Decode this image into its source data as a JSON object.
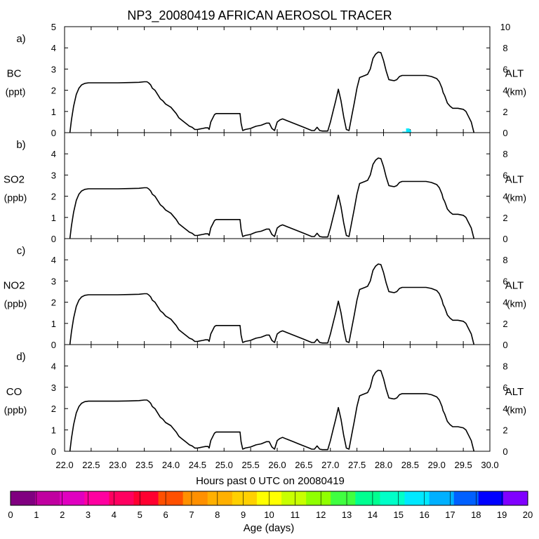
{
  "figure": {
    "title": "NP3_20080419 AFRICAN AEROSOL TRACER",
    "xlabel": "Hours past 0 UTC on 20080419",
    "x_ticks": [
      "22.0",
      "22.5",
      "23.0",
      "23.5",
      "24.0",
      "24.5",
      "25.0",
      "25.5",
      "26.0",
      "26.5",
      "27.0",
      "27.5",
      "28.0",
      "28.5",
      "29.0",
      "29.5",
      "30.0"
    ]
  },
  "panels": [
    {
      "letter": "a)",
      "species": "BC",
      "unit": "(ppt)",
      "right_label": "ALT",
      "right_unit": "(km)",
      "left_ticks": [
        "0",
        "1",
        "2",
        "3",
        "4",
        "5"
      ],
      "right_ticks": [
        "0",
        "2",
        "4",
        "6",
        "8",
        "10"
      ]
    },
    {
      "letter": "b)",
      "species": "SO2",
      "unit": "(ppb)",
      "right_label": "ALT",
      "right_unit": "(km)",
      "left_ticks": [
        "0",
        "1",
        "2",
        "3",
        "4"
      ],
      "right_ticks": [
        "0",
        "2",
        "4",
        "6",
        "8"
      ]
    },
    {
      "letter": "c)",
      "species": "NO2",
      "unit": "(ppb)",
      "right_label": "ALT",
      "right_unit": "(km)",
      "left_ticks": [
        "0",
        "1",
        "2",
        "3",
        "4"
      ],
      "right_ticks": [
        "0",
        "2",
        "4",
        "6",
        "8"
      ]
    },
    {
      "letter": "d)",
      "species": "CO",
      "unit": "(ppb)",
      "right_label": "ALT",
      "right_unit": "(km)",
      "left_ticks": [
        "0",
        "1",
        "2",
        "3",
        "4"
      ],
      "right_ticks": [
        "0",
        "2",
        "4",
        "6",
        "8"
      ]
    }
  ],
  "colorbar": {
    "label": "Age (days)",
    "tick_labels": [
      "0",
      "1",
      "2",
      "3",
      "4",
      "5",
      "6",
      "7",
      "8",
      "9",
      "10",
      "11",
      "12",
      "13",
      "14",
      "15",
      "16",
      "17",
      "18",
      "19",
      "20"
    ],
    "colors": [
      "#800080",
      "#c000a0",
      "#e000c0",
      "#ff00a0",
      "#ff0060",
      "#ff0030",
      "#ff5000",
      "#ff9000",
      "#ffb000",
      "#ffd000",
      "#ffff00",
      "#c8ff00",
      "#90ff00",
      "#40ff40",
      "#00ff90",
      "#00ffc8",
      "#00e8ff",
      "#00b0ff",
      "#0060ff",
      "#0000ff",
      "#8000ff"
    ]
  },
  "chart_data": {
    "type": "line",
    "x_range": [
      22.0,
      30.0
    ],
    "left_y_range": [
      0,
      5
    ],
    "right_y_range": [
      0,
      10
    ],
    "altitude_km": {
      "x": [
        22.1,
        22.13,
        22.17,
        22.22,
        22.27,
        22.32,
        22.38,
        22.45,
        22.6,
        22.8,
        23.0,
        23.2,
        23.4,
        23.5,
        23.55,
        23.58,
        23.62,
        23.65,
        23.7,
        23.75,
        23.8,
        23.85,
        23.9,
        24.0,
        24.05,
        24.1,
        24.15,
        24.2,
        24.25,
        24.3,
        24.35,
        24.4,
        24.45,
        24.5,
        24.55,
        24.6,
        24.65,
        24.7,
        24.72,
        24.75,
        24.8,
        24.82,
        24.85,
        24.9,
        25.0,
        25.2,
        25.3,
        25.32,
        25.35,
        25.4,
        25.5,
        25.55,
        25.6,
        25.7,
        25.8,
        25.85,
        25.9,
        25.95,
        26.0,
        26.05,
        26.1,
        26.15,
        26.2,
        26.3,
        26.4,
        26.5,
        26.6,
        26.65,
        26.7,
        26.75,
        26.8,
        26.85,
        26.9,
        26.95,
        27.0,
        27.05,
        27.1,
        27.15,
        27.2,
        27.25,
        27.3,
        27.35,
        27.4,
        27.45,
        27.5,
        27.55,
        27.6,
        27.65,
        27.7,
        27.75,
        27.8,
        27.85,
        27.9,
        27.95,
        28.0,
        28.05,
        28.1,
        28.15,
        28.2,
        28.25,
        28.3,
        28.35,
        28.4,
        28.5,
        28.6,
        28.7,
        28.8,
        28.9,
        29.0,
        29.05,
        29.1,
        29.12,
        29.15,
        29.2,
        29.25,
        29.3,
        29.35,
        29.4,
        29.5,
        29.55,
        29.6,
        29.65,
        29.7
      ],
      "y": [
        0,
        1.2,
        2.5,
        3.6,
        4.2,
        4.5,
        4.65,
        4.7,
        4.7,
        4.7,
        4.7,
        4.72,
        4.75,
        4.8,
        4.8,
        4.7,
        4.5,
        4.2,
        4.0,
        3.6,
        3.2,
        3.0,
        2.7,
        2.4,
        2.1,
        1.8,
        1.4,
        1.2,
        1.0,
        0.8,
        0.6,
        0.5,
        0.3,
        0.3,
        0.35,
        0.4,
        0.45,
        0.45,
        0.3,
        1.0,
        1.5,
        1.7,
        1.8,
        1.8,
        1.8,
        1.8,
        1.8,
        0.9,
        0.2,
        0.3,
        0.4,
        0.5,
        0.6,
        0.7,
        0.9,
        0.9,
        0.4,
        0.2,
        1.0,
        1.2,
        1.3,
        1.2,
        1.1,
        0.9,
        0.7,
        0.5,
        0.3,
        0.2,
        0.2,
        0.5,
        0.2,
        0.15,
        0.15,
        0.15,
        1.0,
        2.0,
        3.0,
        4.1,
        3.0,
        1.5,
        0.3,
        0.2,
        1.5,
        2.8,
        4.2,
        5.2,
        5.3,
        5.4,
        5.5,
        6.0,
        7.0,
        7.4,
        7.6,
        7.55,
        6.8,
        5.8,
        5.0,
        4.95,
        4.9,
        5.0,
        5.3,
        5.4,
        5.4,
        5.4,
        5.4,
        5.4,
        5.4,
        5.3,
        5.1,
        4.8,
        4.2,
        3.8,
        3.5,
        2.8,
        2.5,
        2.3,
        2.3,
        2.3,
        2.2,
        2.0,
        1.5,
        1.0,
        0
      ]
    },
    "tracer_markers": [
      {
        "panel": "a)",
        "x": 28.38,
        "value": 0.05,
        "age_days": 16
      },
      {
        "panel": "a)",
        "x": 28.45,
        "value": 0.2,
        "age_days": 16
      },
      {
        "panel": "a)",
        "x": 28.48,
        "value": 0.12,
        "age_days": 16
      }
    ]
  }
}
